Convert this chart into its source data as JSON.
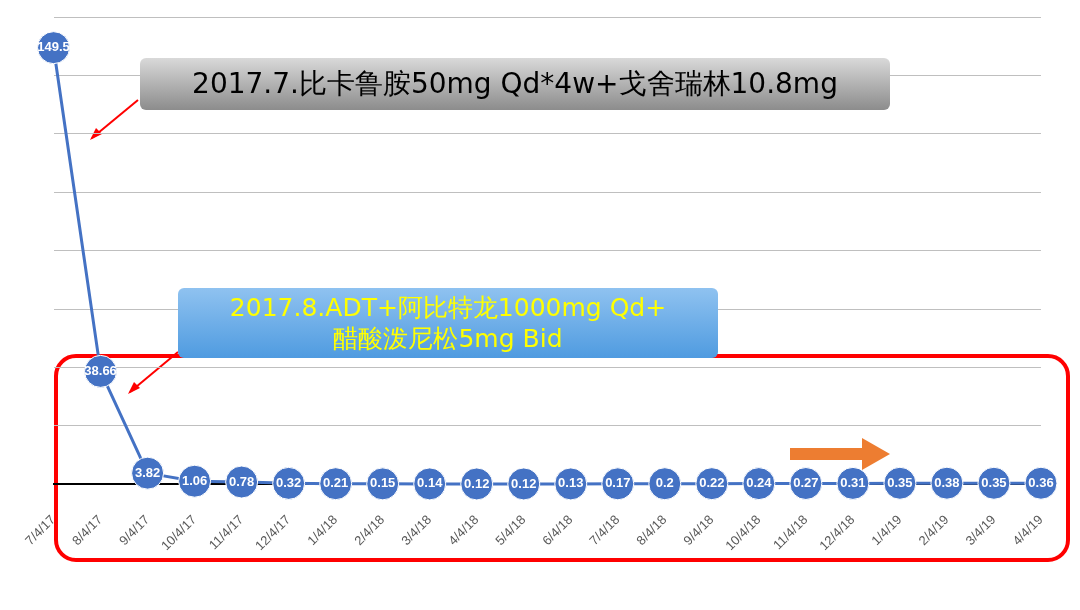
{
  "chart_data": {
    "type": "line",
    "categories": [
      "7/4/17",
      "8/4/17",
      "9/4/17",
      "10/4/17",
      "11/4/17",
      "12/4/17",
      "1/4/18",
      "2/4/18",
      "3/4/18",
      "4/4/18",
      "5/4/18",
      "6/4/18",
      "7/4/18",
      "8/4/18",
      "9/4/18",
      "10/4/18",
      "11/4/18",
      "12/4/18",
      "1/4/19",
      "2/4/19",
      "3/4/19",
      "4/4/19"
    ],
    "series": [
      {
        "color": "#4472c4",
        "values": [
          149.5,
          38.66,
          3.82,
          1.06,
          0.78,
          0.32,
          0.21,
          0.15,
          0.14,
          0.12,
          0.12,
          0.13,
          0.17,
          0.2,
          0.22,
          0.24,
          0.27,
          0.31,
          0.35,
          0.38,
          0.35,
          0.36
        ]
      }
    ],
    "ylim": [
      0,
      160
    ],
    "yticks": [
      {
        "value": 0,
        "label": null
      },
      {
        "value": 20,
        "label": null
      },
      {
        "value": 40,
        "label": null
      },
      {
        "value": 60,
        "label": null
      },
      {
        "value": 80,
        "label": null
      },
      {
        "value": 100,
        "label": null
      },
      {
        "value": 120,
        "label": null
      },
      {
        "value": 140,
        "label": null
      },
      {
        "value": 160,
        "label": null
      }
    ],
    "tick_labels": "x",
    "grid": "y",
    "legend": false,
    "marker": "circle",
    "line_style": "solid",
    "data_labels": true,
    "annotations": [
      "2017.7.比卡鲁胺50mg Qd*4w+戈舍瑞林10.8mg",
      "2017.8.ADT+阿比特龙1000mg Qd+\n醋酸泼尼松5mg Bid"
    ]
  }
}
